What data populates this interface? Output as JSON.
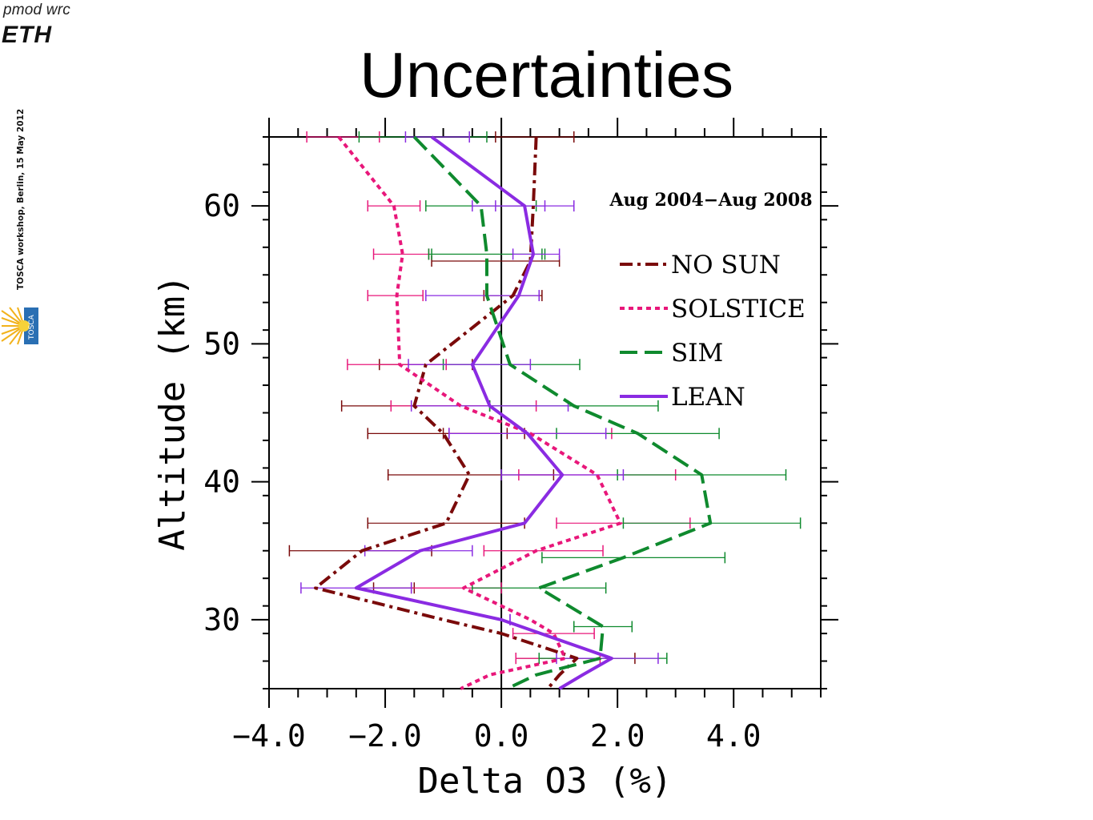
{
  "header": {
    "pmod_wrc": "pmod wrc",
    "eth": "ETH",
    "side_note": "TOSCA workshop, Berlin,  15 May 2012",
    "tosca_logo": "TOSCA"
  },
  "page_title": "Uncertainties",
  "chart_data": {
    "type": "line",
    "xlabel": "Delta O3 (%)",
    "ylabel": "Altitude (km)",
    "xlim": [
      -4.0,
      5.5
    ],
    "ylim": [
      25,
      65
    ],
    "x_ticks": [
      -4.0,
      -2.0,
      0.0,
      2.0,
      4.0
    ],
    "x_tick_labels": [
      "−4.0",
      "−2.0",
      "0.0",
      "2.0",
      "4.0"
    ],
    "y_ticks": [
      30,
      40,
      50,
      60
    ],
    "y_tick_labels": [
      "30",
      "40",
      "50",
      "60"
    ],
    "annotation": "Aug 2004−Aug 2008",
    "legend_position": "top-right",
    "zero_line": 0.0,
    "series": [
      {
        "name": "NO SUN",
        "color": "#7a0a0a",
        "style": "dashdot",
        "points": [
          [
            0.6,
            65
          ],
          [
            0.55,
            60
          ],
          [
            0.5,
            56
          ],
          [
            0.2,
            53.5
          ],
          [
            -1.3,
            48.5
          ],
          [
            -1.5,
            45.5
          ],
          [
            -1.0,
            43.5
          ],
          [
            -0.55,
            40.5
          ],
          [
            -0.95,
            37
          ],
          [
            -2.4,
            35
          ],
          [
            -3.2,
            32.3
          ],
          [
            -1.0,
            30
          ],
          [
            0.0,
            29
          ],
          [
            1.3,
            27.2
          ],
          [
            1.0,
            26
          ],
          [
            0.8,
            25
          ]
        ],
        "errors": [
          [
            -2.0,
            -3.4,
            1.4
          ],
          [
            0.6,
            -0.1,
            1.25
          ],
          [
            0.5,
            -1.2,
            1.0
          ],
          [
            0.2,
            -0.3,
            0.7
          ],
          [
            -1.3,
            -2.1,
            -0.5
          ],
          [
            -1.5,
            -2.75,
            -0.2
          ],
          [
            -1.0,
            -2.3,
            0.4
          ],
          [
            -0.55,
            -1.95,
            0.9
          ],
          [
            -0.95,
            -2.3,
            0.4
          ],
          [
            -2.4,
            -3.65,
            -1.2
          ],
          [
            -3.2,
            -2.2,
            -1.5
          ],
          [
            -1.0,
            -1.0,
            0.1
          ],
          [
            1.3,
            0.25,
            2.3
          ]
        ]
      },
      {
        "name": "SOLSTICE",
        "color": "#e8177a",
        "style": "dotted",
        "points": [
          [
            -2.8,
            65
          ],
          [
            -1.85,
            60
          ],
          [
            -1.7,
            56.5
          ],
          [
            -1.8,
            53.5
          ],
          [
            -1.75,
            48.5
          ],
          [
            -0.7,
            45.5
          ],
          [
            0.5,
            43.5
          ],
          [
            1.65,
            40.5
          ],
          [
            2.05,
            37
          ],
          [
            0.6,
            35
          ],
          [
            -0.65,
            32.3
          ],
          [
            0.5,
            30
          ],
          [
            0.9,
            29
          ],
          [
            1.1,
            27.2
          ],
          [
            -0.2,
            26
          ],
          [
            -0.7,
            25
          ]
        ],
        "errors": [
          [
            -2.8,
            -3.35,
            -2.1
          ],
          [
            -1.85,
            -2.3,
            -1.4
          ],
          [
            -1.7,
            -2.2,
            -1.25
          ],
          [
            -1.8,
            -2.3,
            -1.35
          ],
          [
            -1.75,
            -2.65,
            -0.95
          ],
          [
            -0.7,
            -1.9,
            0.6
          ],
          [
            0.5,
            -0.9,
            1.9
          ],
          [
            1.65,
            0.3,
            3.0
          ],
          [
            2.05,
            0.95,
            3.25
          ],
          [
            0.6,
            -0.3,
            1.75
          ],
          [
            -0.65,
            -1.55,
            0.0
          ],
          [
            0.9,
            0.2,
            1.6
          ],
          [
            1.1,
            0.25,
            1.7
          ]
        ]
      },
      {
        "name": "SIM",
        "color": "#0f8a2e",
        "style": "dashed",
        "points": [
          [
            -1.5,
            65
          ],
          [
            -0.35,
            60
          ],
          [
            -0.25,
            56.5
          ],
          [
            -0.25,
            53.5
          ],
          [
            0.15,
            48.5
          ],
          [
            1.25,
            45.5
          ],
          [
            2.35,
            43.5
          ],
          [
            3.45,
            40.5
          ],
          [
            3.6,
            37
          ],
          [
            2.1,
            34.5
          ],
          [
            0.65,
            32.3
          ],
          [
            1.75,
            29.5
          ],
          [
            1.7,
            27.2
          ],
          [
            0.6,
            26
          ],
          [
            0.1,
            25
          ]
        ],
        "errors": [
          [
            -1.5,
            -2.45,
            -0.25
          ],
          [
            -0.35,
            -1.3,
            0.6
          ],
          [
            -0.25,
            -1.25,
            0.75
          ],
          [
            -0.25,
            -1.2,
            0.7
          ],
          [
            0.15,
            -1.0,
            1.35
          ],
          [
            1.25,
            -0.2,
            2.7
          ],
          [
            2.35,
            0.95,
            3.75
          ],
          [
            3.45,
            2.0,
            4.9
          ],
          [
            3.6,
            2.1,
            5.15
          ],
          [
            2.1,
            0.7,
            3.85
          ],
          [
            0.65,
            -0.5,
            1.8
          ],
          [
            1.75,
            1.25,
            2.25
          ],
          [
            1.7,
            0.65,
            2.85
          ]
        ]
      },
      {
        "name": "LEAN",
        "color": "#8a2be2",
        "style": "solid",
        "points": [
          [
            -1.2,
            65
          ],
          [
            0.4,
            60
          ],
          [
            0.55,
            56.5
          ],
          [
            0.3,
            53.5
          ],
          [
            -0.5,
            48.5
          ],
          [
            -0.2,
            45.5
          ],
          [
            0.45,
            43.5
          ],
          [
            1.05,
            40.5
          ],
          [
            0.4,
            37
          ],
          [
            -1.4,
            35
          ],
          [
            -2.5,
            32.3
          ],
          [
            0.0,
            30
          ],
          [
            1.9,
            27.2
          ],
          [
            1.4,
            26
          ],
          [
            1.0,
            25
          ]
        ],
        "errors": [
          [
            -1.2,
            -1.65,
            -0.55
          ],
          [
            0.4,
            -0.1,
            0.75
          ],
          [
            0.55,
            0.2,
            1.0
          ],
          [
            0.3,
            -1.3,
            0.65
          ],
          [
            -0.5,
            -1.6,
            0.5
          ],
          [
            -0.2,
            -1.55,
            1.15
          ],
          [
            0.45,
            -0.9,
            1.8
          ],
          [
            1.05,
            0.0,
            2.1
          ],
          [
            0.4,
            -0.5,
            1.25
          ],
          [
            -1.4,
            -2.35,
            -0.5
          ],
          [
            -2.5,
            -3.45,
            -1.55
          ],
          [
            0.0,
            0.15,
            0.15
          ],
          [
            1.9,
            0.95,
            2.7
          ]
        ]
      }
    ]
  }
}
